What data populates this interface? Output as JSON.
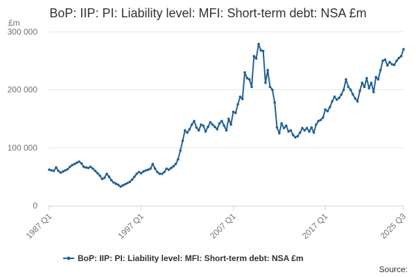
{
  "chart_data": {
    "type": "line",
    "title": "BoP: IIP: PI: Liability level: MFI: Short-term debt: NSA £m",
    "ylabel": "£m",
    "ylim": [
      0,
      300000
    ],
    "yticks": [
      {
        "value": 0,
        "label": "0"
      },
      {
        "value": 100000,
        "label": "100 000"
      },
      {
        "value": 200000,
        "label": "200 000"
      },
      {
        "value": 300000,
        "label": "300 000"
      }
    ],
    "xlim": [
      1987.0,
      2025.5
    ],
    "xticks": [
      {
        "value": 1987.0,
        "label": "1987 Q1"
      },
      {
        "value": 1997.0,
        "label": "1997 Q1"
      },
      {
        "value": 2007.0,
        "label": "2007 Q1"
      },
      {
        "value": 2017.0,
        "label": "2017 Q1"
      },
      {
        "value": 2025.5,
        "label": "2025 Q3"
      }
    ],
    "grid": true,
    "legend_position": "bottom",
    "source_label": "Source:",
    "color": "#206095",
    "series": [
      {
        "name": "BoP: IIP: PI: Liability level: MFI: Short-term debt: NSA £m",
        "points": [
          [
            1987.0,
            62000
          ],
          [
            1987.25,
            61000
          ],
          [
            1987.5,
            60000
          ],
          [
            1987.75,
            66000
          ],
          [
            1988.0,
            60000
          ],
          [
            1988.25,
            57000
          ],
          [
            1988.5,
            59000
          ],
          [
            1988.75,
            61000
          ],
          [
            1989.0,
            63000
          ],
          [
            1989.25,
            67000
          ],
          [
            1989.5,
            70000
          ],
          [
            1989.75,
            72000
          ],
          [
            1990.0,
            74000
          ],
          [
            1990.25,
            76000
          ],
          [
            1990.5,
            73000
          ],
          [
            1990.75,
            67000
          ],
          [
            1991.0,
            66000
          ],
          [
            1991.25,
            65000
          ],
          [
            1991.5,
            67000
          ],
          [
            1991.75,
            64000
          ],
          [
            1992.0,
            60000
          ],
          [
            1992.25,
            56000
          ],
          [
            1992.5,
            52000
          ],
          [
            1992.75,
            46000
          ],
          [
            1993.0,
            48000
          ],
          [
            1993.25,
            55000
          ],
          [
            1993.5,
            50000
          ],
          [
            1993.75,
            44000
          ],
          [
            1994.0,
            40000
          ],
          [
            1994.25,
            38000
          ],
          [
            1994.5,
            36000
          ],
          [
            1994.75,
            33000
          ],
          [
            1995.0,
            35000
          ],
          [
            1995.25,
            37000
          ],
          [
            1995.5,
            39000
          ],
          [
            1995.75,
            41000
          ],
          [
            1996.0,
            45000
          ],
          [
            1996.25,
            50000
          ],
          [
            1996.5,
            55000
          ],
          [
            1996.75,
            58000
          ],
          [
            1997.0,
            56000
          ],
          [
            1997.25,
            59000
          ],
          [
            1997.5,
            61000
          ],
          [
            1997.75,
            62000
          ],
          [
            1998.0,
            64000
          ],
          [
            1998.25,
            72000
          ],
          [
            1998.5,
            64000
          ],
          [
            1998.75,
            58000
          ],
          [
            1999.0,
            55000
          ],
          [
            1999.25,
            55000
          ],
          [
            1999.5,
            58000
          ],
          [
            1999.75,
            64000
          ],
          [
            2000.0,
            62000
          ],
          [
            2000.25,
            65000
          ],
          [
            2000.5,
            68000
          ],
          [
            2000.75,
            72000
          ],
          [
            2001.0,
            80000
          ],
          [
            2001.25,
            95000
          ],
          [
            2001.5,
            112000
          ],
          [
            2001.75,
            130000
          ],
          [
            2002.0,
            126000
          ],
          [
            2002.25,
            132000
          ],
          [
            2002.5,
            140000
          ],
          [
            2002.75,
            146000
          ],
          [
            2003.0,
            135000
          ],
          [
            2003.25,
            130000
          ],
          [
            2003.5,
            140000
          ],
          [
            2003.75,
            138000
          ],
          [
            2004.0,
            128000
          ],
          [
            2004.25,
            136000
          ],
          [
            2004.5,
            144000
          ],
          [
            2004.75,
            140000
          ],
          [
            2005.0,
            136000
          ],
          [
            2005.25,
            132000
          ],
          [
            2005.5,
            142000
          ],
          [
            2005.75,
            146000
          ],
          [
            2006.0,
            138000
          ],
          [
            2006.25,
            130000
          ],
          [
            2006.5,
            150000
          ],
          [
            2006.75,
            140000
          ],
          [
            2007.0,
            162000
          ],
          [
            2007.25,
            160000
          ],
          [
            2007.5,
            175000
          ],
          [
            2007.75,
            188000
          ],
          [
            2008.0,
            184000
          ],
          [
            2008.25,
            230000
          ],
          [
            2008.5,
            220000
          ],
          [
            2008.75,
            218000
          ],
          [
            2009.0,
            205000
          ],
          [
            2009.25,
            258000
          ],
          [
            2009.5,
            254000
          ],
          [
            2009.75,
            279000
          ],
          [
            2010.0,
            268000
          ],
          [
            2010.25,
            267000
          ],
          [
            2010.5,
            212000
          ],
          [
            2010.75,
            234000
          ],
          [
            2011.0,
            205000
          ],
          [
            2011.25,
            200000
          ],
          [
            2011.5,
            178000
          ],
          [
            2011.75,
            135000
          ],
          [
            2012.0,
            125000
          ],
          [
            2012.25,
            142000
          ],
          [
            2012.5,
            134000
          ],
          [
            2012.75,
            138000
          ],
          [
            2013.0,
            128000
          ],
          [
            2013.25,
            130000
          ],
          [
            2013.5,
            122000
          ],
          [
            2013.75,
            118000
          ],
          [
            2014.0,
            120000
          ],
          [
            2014.25,
            126000
          ],
          [
            2014.5,
            134000
          ],
          [
            2014.75,
            130000
          ],
          [
            2015.0,
            134000
          ],
          [
            2015.25,
            128000
          ],
          [
            2015.5,
            135000
          ],
          [
            2015.75,
            126000
          ],
          [
            2016.0,
            140000
          ],
          [
            2016.25,
            146000
          ],
          [
            2016.5,
            148000
          ],
          [
            2016.75,
            152000
          ],
          [
            2017.0,
            166000
          ],
          [
            2017.25,
            163000
          ],
          [
            2017.5,
            170000
          ],
          [
            2017.75,
            180000
          ],
          [
            2018.0,
            188000
          ],
          [
            2018.25,
            183000
          ],
          [
            2018.5,
            186000
          ],
          [
            2018.75,
            192000
          ],
          [
            2019.0,
            200000
          ],
          [
            2019.25,
            218000
          ],
          [
            2019.5,
            205000
          ],
          [
            2019.75,
            200000
          ],
          [
            2020.0,
            192000
          ],
          [
            2020.25,
            185000
          ],
          [
            2020.5,
            180000
          ],
          [
            2020.75,
            198000
          ],
          [
            2021.0,
            212000
          ],
          [
            2021.25,
            205000
          ],
          [
            2021.5,
            220000
          ],
          [
            2021.75,
            203000
          ],
          [
            2022.0,
            212000
          ],
          [
            2022.25,
            196000
          ],
          [
            2022.5,
            222000
          ],
          [
            2022.75,
            218000
          ],
          [
            2023.0,
            234000
          ],
          [
            2023.25,
            250000
          ],
          [
            2023.5,
            252000
          ],
          [
            2023.75,
            242000
          ],
          [
            2024.0,
            248000
          ],
          [
            2024.25,
            244000
          ],
          [
            2024.5,
            243000
          ],
          [
            2024.75,
            250000
          ],
          [
            2025.0,
            255000
          ],
          [
            2025.25,
            258000
          ],
          [
            2025.5,
            270000
          ]
        ]
      }
    ]
  }
}
